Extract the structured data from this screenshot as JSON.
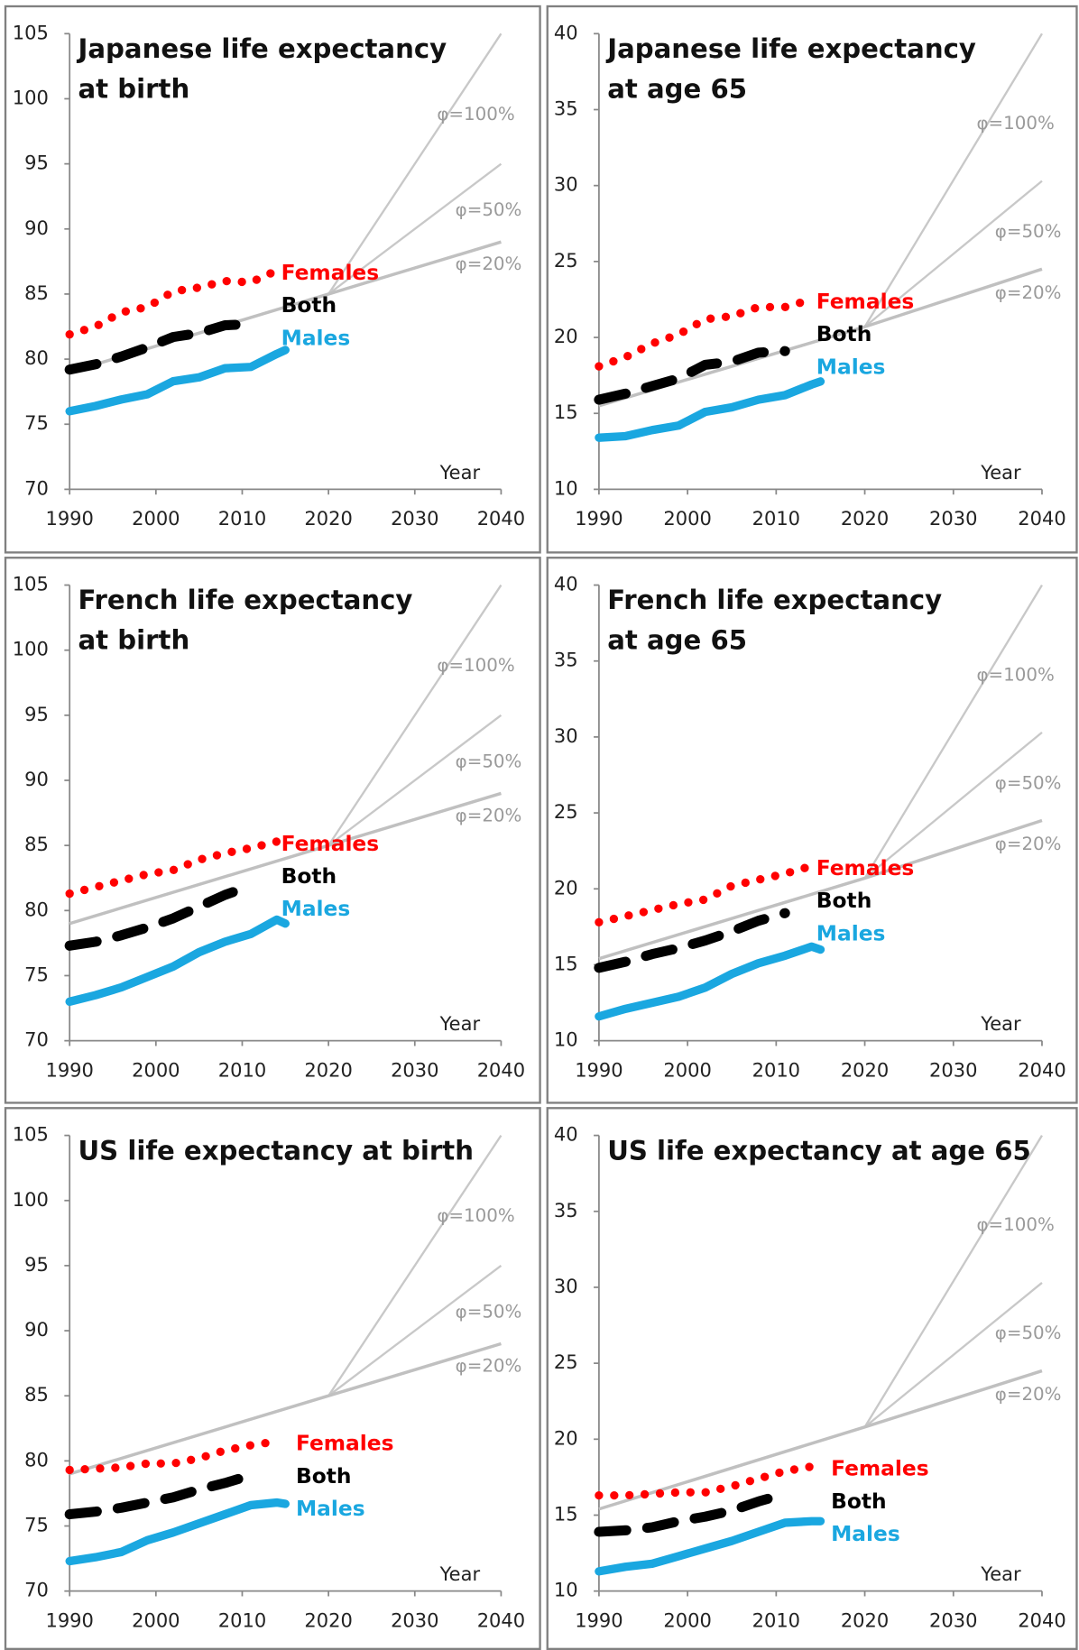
{
  "chart_data": [
    {
      "type": "line",
      "title": [
        "Japanese life expectancy",
        "at birth"
      ],
      "x_label": "Year",
      "x": [
        1990,
        1993,
        1996,
        1999,
        2002,
        2005,
        2008,
        2011,
        2014,
        2015
      ],
      "xlim": [
        1990,
        2040
      ],
      "xticks": [
        1990,
        2000,
        2010,
        2020,
        2030,
        2040
      ],
      "ylim": [
        70,
        105
      ],
      "yticks": [
        70,
        75,
        80,
        85,
        90,
        95,
        100,
        105
      ],
      "series": [
        {
          "name": "Females",
          "color": "#ff0000",
          "values": [
            81.9,
            82.5,
            83.6,
            84.0,
            85.2,
            85.5,
            86.0,
            85.9,
            86.8,
            null
          ]
        },
        {
          "name": "Both",
          "color": "#000000",
          "values": [
            79.2,
            79.6,
            80.2,
            80.9,
            81.7,
            82.0,
            82.6,
            82.7,
            null,
            null
          ]
        },
        {
          "name": "Males",
          "color": "#1aa7e0",
          "values": [
            76.0,
            76.4,
            76.9,
            77.3,
            78.3,
            78.6,
            79.3,
            79.4,
            80.4,
            80.7
          ]
        }
      ],
      "projections": [
        {
          "name": "φ=100%",
          "color": "#c8c8c8",
          "x": [
            2020,
            2040
          ],
          "values": [
            85,
            105
          ]
        },
        {
          "name": "φ=50%",
          "color": "#c8c8c8",
          "x": [
            2020,
            2040
          ],
          "values": [
            85,
            95
          ]
        },
        {
          "name": "φ=20%",
          "color": "#c0c0c0",
          "x": [
            1990,
            2020,
            2040
          ],
          "values": [
            79,
            85,
            89
          ]
        }
      ]
    },
    {
      "type": "line",
      "title": [
        "Japanese life expectancy",
        "at age 65"
      ],
      "x_label": "Year",
      "x": [
        1990,
        1993,
        1996,
        1999,
        2002,
        2005,
        2008,
        2011,
        2014,
        2015
      ],
      "xlim": [
        1990,
        2040
      ],
      "xticks": [
        1990,
        2000,
        2010,
        2020,
        2030,
        2040
      ],
      "ylim": [
        10,
        40
      ],
      "yticks": [
        10,
        15,
        20,
        25,
        30,
        35,
        40
      ],
      "series": [
        {
          "name": "Females",
          "color": "#ff0000",
          "values": [
            18.1,
            18.7,
            19.6,
            20.2,
            21.2,
            21.4,
            22.0,
            22.0,
            22.5,
            null
          ]
        },
        {
          "name": "Both",
          "color": "#000000",
          "values": [
            15.9,
            16.3,
            16.8,
            17.3,
            18.2,
            18.4,
            19.0,
            19.1,
            null,
            null
          ]
        },
        {
          "name": "Males",
          "color": "#1aa7e0",
          "values": [
            13.4,
            13.5,
            13.9,
            14.2,
            15.1,
            15.4,
            15.9,
            16.2,
            16.9,
            17.1
          ]
        }
      ],
      "projections": [
        {
          "name": "φ=100%",
          "color": "#c8c8c8",
          "x": [
            2020,
            2040
          ],
          "values": [
            20.7,
            40
          ]
        },
        {
          "name": "φ=50%",
          "color": "#c8c8c8",
          "x": [
            2020,
            2040
          ],
          "values": [
            20.7,
            30.3
          ]
        },
        {
          "name": "φ=20%",
          "color": "#c0c0c0",
          "x": [
            1990,
            2020,
            2040
          ],
          "values": [
            15.5,
            20.7,
            24.5
          ]
        }
      ]
    },
    {
      "type": "line",
      "title": [
        "French life expectancy",
        "at birth"
      ],
      "x_label": "Year",
      "x": [
        1990,
        1993,
        1996,
        1999,
        2002,
        2005,
        2008,
        2011,
        2014,
        2015
      ],
      "xlim": [
        1990,
        2040
      ],
      "xticks": [
        1990,
        2000,
        2010,
        2020,
        2030,
        2040
      ],
      "ylim": [
        70,
        105
      ],
      "yticks": [
        70,
        75,
        80,
        85,
        90,
        95,
        100,
        105
      ],
      "series": [
        {
          "name": "Females",
          "color": "#ff0000",
          "values": [
            81.3,
            81.8,
            82.3,
            82.8,
            83.1,
            83.9,
            84.4,
            84.8,
            85.3,
            null
          ]
        },
        {
          "name": "Both",
          "color": "#000000",
          "values": [
            77.3,
            77.6,
            78.1,
            78.7,
            79.4,
            80.3,
            81.2,
            81.9,
            null,
            null
          ]
        },
        {
          "name": "Males",
          "color": "#1aa7e0",
          "values": [
            73.0,
            73.5,
            74.1,
            74.9,
            75.7,
            76.8,
            77.6,
            78.2,
            79.3,
            79.0
          ]
        }
      ],
      "projections": [
        {
          "name": "φ=100%",
          "color": "#c8c8c8",
          "x": [
            2020,
            2040
          ],
          "values": [
            85,
            105
          ]
        },
        {
          "name": "φ=50%",
          "color": "#c8c8c8",
          "x": [
            2020,
            2040
          ],
          "values": [
            85,
            95
          ]
        },
        {
          "name": "φ=20%",
          "color": "#c0c0c0",
          "x": [
            1990,
            2020,
            2040
          ],
          "values": [
            79,
            85,
            89
          ]
        }
      ]
    },
    {
      "type": "line",
      "title": [
        "French life expectancy",
        "at age 65"
      ],
      "x_label": "Year",
      "x": [
        1990,
        1993,
        1996,
        1999,
        2002,
        2005,
        2008,
        2011,
        2014,
        2015
      ],
      "xlim": [
        1990,
        2040
      ],
      "xticks": [
        1990,
        2000,
        2010,
        2020,
        2030,
        2040
      ],
      "ylim": [
        10,
        40
      ],
      "yticks": [
        10,
        15,
        20,
        25,
        30,
        35,
        40
      ],
      "series": [
        {
          "name": "Females",
          "color": "#ff0000",
          "values": [
            17.8,
            18.2,
            18.6,
            19.0,
            19.3,
            20.2,
            20.6,
            21.0,
            21.5,
            null
          ]
        },
        {
          "name": "Both",
          "color": "#000000",
          "values": [
            14.8,
            15.2,
            15.7,
            16.1,
            16.6,
            17.2,
            17.9,
            18.4,
            null,
            null
          ]
        },
        {
          "name": "Males",
          "color": "#1aa7e0",
          "values": [
            11.6,
            12.1,
            12.5,
            12.9,
            13.5,
            14.4,
            15.1,
            15.6,
            16.2,
            16.0
          ]
        }
      ],
      "projections": [
        {
          "name": "φ=100%",
          "color": "#c8c8c8",
          "x": [
            2020,
            2040
          ],
          "values": [
            20.7,
            40
          ]
        },
        {
          "name": "φ=50%",
          "color": "#c8c8c8",
          "x": [
            2020,
            2040
          ],
          "values": [
            20.7,
            30.3
          ]
        },
        {
          "name": "φ=20%",
          "color": "#c0c0c0",
          "x": [
            1990,
            2020,
            2040
          ],
          "values": [
            15.4,
            20.7,
            24.5
          ]
        }
      ]
    },
    {
      "type": "line",
      "title": [
        "US life expectancy at birth"
      ],
      "x_label": "Year",
      "x": [
        1990,
        1993,
        1996,
        1999,
        2002,
        2005,
        2008,
        2011,
        2014,
        2015
      ],
      "xlim": [
        1990,
        2040
      ],
      "xticks": [
        1990,
        2000,
        2010,
        2020,
        2030,
        2040
      ],
      "ylim": [
        70,
        105
      ],
      "yticks": [
        70,
        75,
        80,
        85,
        90,
        95,
        100,
        105
      ],
      "series": [
        {
          "name": "Females",
          "color": "#ff0000",
          "values": [
            79.3,
            79.4,
            79.5,
            79.8,
            79.8,
            80.2,
            80.8,
            81.2,
            81.5,
            null
          ]
        },
        {
          "name": "Both",
          "color": "#000000",
          "values": [
            75.9,
            76.1,
            76.4,
            76.8,
            77.2,
            77.8,
            78.3,
            78.9,
            null,
            null
          ]
        },
        {
          "name": "Males",
          "color": "#1aa7e0",
          "values": [
            72.3,
            72.6,
            73.0,
            73.9,
            74.5,
            75.2,
            75.9,
            76.6,
            76.8,
            76.7
          ]
        }
      ],
      "projections": [
        {
          "name": "φ=100%",
          "color": "#c8c8c8",
          "x": [
            2020,
            2040
          ],
          "values": [
            85,
            105
          ]
        },
        {
          "name": "φ=50%",
          "color": "#c8c8c8",
          "x": [
            2020,
            2040
          ],
          "values": [
            85,
            95
          ]
        },
        {
          "name": "φ=20%",
          "color": "#c0c0c0",
          "x": [
            1990,
            2020,
            2040
          ],
          "values": [
            79,
            85,
            89
          ]
        }
      ]
    },
    {
      "type": "line",
      "title": [
        "US life expectancy at age 65"
      ],
      "x_label": "Year",
      "x": [
        1990,
        1993,
        1996,
        1999,
        2002,
        2005,
        2008,
        2011,
        2014,
        2015
      ],
      "xlim": [
        1990,
        2040
      ],
      "xticks": [
        1990,
        2000,
        2010,
        2020,
        2030,
        2040
      ],
      "ylim": [
        10,
        40
      ],
      "yticks": [
        10,
        15,
        20,
        25,
        30,
        35,
        40
      ],
      "series": [
        {
          "name": "Females",
          "color": "#ff0000",
          "values": [
            16.3,
            16.3,
            16.4,
            16.5,
            16.5,
            16.9,
            17.4,
            17.9,
            18.2,
            null
          ]
        },
        {
          "name": "Both",
          "color": "#000000",
          "values": [
            13.9,
            14.0,
            14.2,
            14.6,
            14.9,
            15.3,
            15.9,
            16.4,
            null,
            null
          ]
        },
        {
          "name": "Males",
          "color": "#1aa7e0",
          "values": [
            11.3,
            11.6,
            11.8,
            12.3,
            12.8,
            13.3,
            13.9,
            14.5,
            14.6,
            14.6
          ]
        }
      ],
      "projections": [
        {
          "name": "φ=100%",
          "color": "#c8c8c8",
          "x": [
            2020,
            2040
          ],
          "values": [
            20.8,
            40
          ]
        },
        {
          "name": "φ=50%",
          "color": "#c8c8c8",
          "x": [
            2020,
            2040
          ],
          "values": [
            20.8,
            30.3
          ]
        },
        {
          "name": "φ=20%",
          "color": "#c0c0c0",
          "x": [
            1990,
            2020,
            2040
          ],
          "values": [
            15.4,
            20.8,
            24.5
          ]
        }
      ]
    }
  ]
}
